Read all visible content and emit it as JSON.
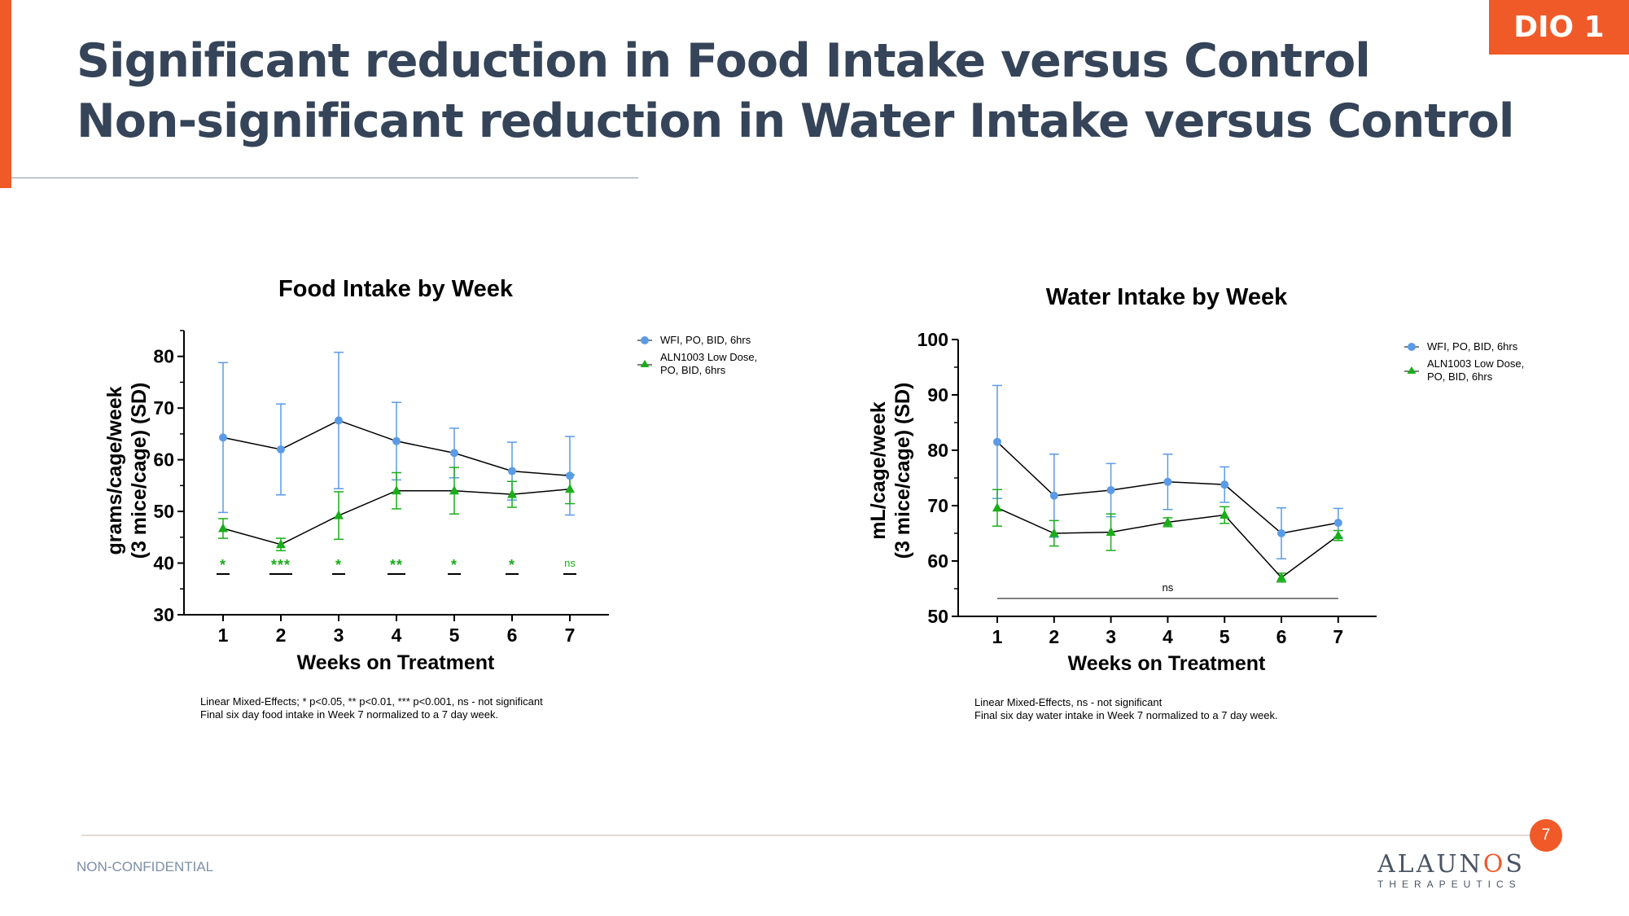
{
  "header": {
    "tag": "DIO 1",
    "title_line1": "Significant reduction in Food Intake versus Control",
    "title_line2": "Non-significant reduction in Water Intake versus Control"
  },
  "footer": {
    "confidential": "NON-CONFIDENTIAL",
    "page_number": "7",
    "logo_text_a": "ALAUN",
    "logo_text_b": "O",
    "logo_text_c": "S",
    "logo_sub": "THERAPEUTICS"
  },
  "colors": {
    "accent": "#f05a28",
    "title": "#354458",
    "wfi": "#5b9be6",
    "aln": "#1aad1a"
  },
  "chart_data": [
    {
      "type": "line",
      "title": "Food Intake by Week",
      "xlabel": "Weeks on Treatment",
      "ylabel_line1": "grams/cage/week",
      "ylabel_line2": "(3 mice/cage) (SD)",
      "x": [
        1,
        2,
        3,
        4,
        5,
        6,
        7
      ],
      "ylim": [
        30,
        85
      ],
      "yticks": [
        30,
        40,
        50,
        60,
        70,
        80
      ],
      "series": [
        {
          "name": "WFI, PO, BID, 6hrs",
          "marker": "circle",
          "color": "#5b9be6",
          "values": [
            64.3,
            62.0,
            67.6,
            63.6,
            61.3,
            57.8,
            56.9
          ],
          "sd": [
            14.5,
            8.8,
            13.2,
            7.5,
            4.8,
            5.6,
            7.6
          ]
        },
        {
          "name": "ALN1003 Low Dose, PO, BID, 6hrs",
          "marker": "triangle",
          "color": "#1aad1a",
          "values": [
            46.7,
            43.6,
            49.2,
            54.0,
            54.0,
            53.3,
            54.3
          ],
          "sd": [
            1.9,
            1.2,
            4.6,
            3.5,
            4.5,
            2.5,
            2.8
          ]
        }
      ],
      "significance": [
        "*",
        "***",
        "*",
        "**",
        "*",
        "*",
        "ns"
      ],
      "footnote_line1": "Linear Mixed-Effects; * p<0.05, ** p<0.01, *** p<0.001, ns - not significant",
      "footnote_line2": "Final six day food intake in Week 7 normalized to a 7 day week."
    },
    {
      "type": "line",
      "title": "Water Intake by Week",
      "xlabel": "Weeks on Treatment",
      "ylabel_line1": "mL/cage/week",
      "ylabel_line2": "(3 mice/cage) (SD)",
      "x": [
        1,
        2,
        3,
        4,
        5,
        6,
        7
      ],
      "ylim": [
        50,
        100
      ],
      "yticks": [
        50,
        60,
        70,
        80,
        90,
        100
      ],
      "series": [
        {
          "name": "WFI, PO, BID, 6hrs",
          "marker": "circle",
          "color": "#5b9be6",
          "values": [
            81.5,
            71.8,
            72.8,
            74.3,
            73.8,
            65.0,
            66.9
          ],
          "sd": [
            10.2,
            7.5,
            4.8,
            5.0,
            3.2,
            4.6,
            2.6
          ]
        },
        {
          "name": "ALN1003 Low Dose, PO, BID, 6hrs",
          "marker": "triangle",
          "color": "#1aad1a",
          "values": [
            69.6,
            65.0,
            65.2,
            67.0,
            68.3,
            57.0,
            64.6
          ],
          "sd": [
            3.3,
            2.3,
            3.3,
            0.8,
            1.5,
            0.8,
            0.9
          ]
        }
      ],
      "significance_label": "ns",
      "footnote_line1": "Linear Mixed-Effects, ns - not significant",
      "footnote_line2": "Final six day water intake in Week 7 normalized to a 7 day week."
    }
  ],
  "legend": {
    "wfi_label": "WFI, PO, BID, 6hrs",
    "aln_line1": "ALN1003 Low Dose,",
    "aln_line2": "PO, BID, 6hrs"
  }
}
